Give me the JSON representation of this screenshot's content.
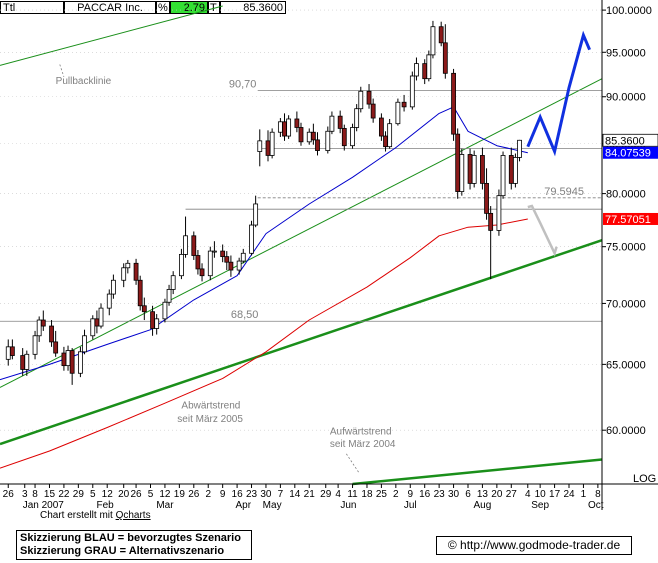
{
  "header": {
    "ttl": "Ttl",
    "name": "PACCAR Inc.",
    "pct_label": "%",
    "pct_value": "2.79",
    "t_label": "T",
    "price": "85.3600"
  },
  "chart_data": {
    "type": "candlestick",
    "y_scale": "log",
    "ylim": [
      56.2,
      100.5
    ],
    "y_ticks": [
      "100.0000",
      "95.0000",
      "90.0000",
      "85.0000",
      "80.0000",
      "75.0000",
      "70.0000",
      "65.0000",
      "60.0000"
    ],
    "y_tick_values": [
      100,
      95,
      90,
      85,
      80,
      75,
      70,
      65,
      60
    ],
    "log_label": "LOG",
    "x_start": "2006-12-22",
    "x_end": "2007-10-10",
    "x_tick_days": [
      "26",
      "3",
      "8",
      "15",
      "22",
      "29",
      "5",
      "12",
      "20",
      "26",
      "5",
      "12",
      "19",
      "26",
      "2",
      "9",
      "16",
      "23",
      "30",
      "7",
      "14",
      "21",
      "29",
      "4",
      "11",
      "18",
      "25",
      "2",
      "9",
      "16",
      "23",
      "30",
      "6",
      "13",
      "20",
      "27",
      "4",
      "10",
      "17",
      "24",
      "1",
      "8"
    ],
    "x_tick_dates": [
      "2006-12-26",
      "2007-01-03",
      "2007-01-08",
      "2007-01-15",
      "2007-01-22",
      "2007-01-29",
      "2007-02-05",
      "2007-02-12",
      "2007-02-20",
      "2007-02-26",
      "2007-03-05",
      "2007-03-12",
      "2007-03-19",
      "2007-03-26",
      "2007-04-02",
      "2007-04-09",
      "2007-04-16",
      "2007-04-23",
      "2007-04-30",
      "2007-05-07",
      "2007-05-14",
      "2007-05-21",
      "2007-05-29",
      "2007-06-04",
      "2007-06-11",
      "2007-06-18",
      "2007-06-25",
      "2007-07-02",
      "2007-07-09",
      "2007-07-16",
      "2007-07-23",
      "2007-07-30",
      "2007-08-06",
      "2007-08-13",
      "2007-08-20",
      "2007-08-27",
      "2007-09-04",
      "2007-09-10",
      "2007-09-17",
      "2007-09-24",
      "2007-10-01",
      "2007-10-08"
    ],
    "months": [
      {
        "label": "Jan 2007",
        "date": "2007-01-12"
      },
      {
        "label": "Feb",
        "date": "2007-02-11"
      },
      {
        "label": "Mar",
        "date": "2007-03-12"
      },
      {
        "label": "Apr",
        "date": "2007-04-19"
      },
      {
        "label": "May",
        "date": "2007-05-03"
      },
      {
        "label": "Jun",
        "date": "2007-06-09"
      },
      {
        "label": "Jul",
        "date": "2007-07-09"
      },
      {
        "label": "Aug",
        "date": "2007-08-13"
      },
      {
        "label": "Sep",
        "date": "2007-09-10"
      },
      {
        "label": "Oct",
        "date": "2007-10-07"
      }
    ],
    "candles": [
      {
        "d": "2006-12-26",
        "o": 65.4,
        "h": 67.0,
        "l": 64.9,
        "c": 66.4
      },
      {
        "d": "2006-12-28",
        "o": 66.4,
        "h": 67.0,
        "l": 65.4,
        "c": 65.7
      },
      {
        "d": "2007-01-02",
        "o": 65.7,
        "h": 66.3,
        "l": 64.1,
        "c": 64.6
      },
      {
        "d": "2007-01-04",
        "o": 64.6,
        "h": 66.1,
        "l": 64.1,
        "c": 65.8
      },
      {
        "d": "2007-01-08",
        "o": 65.8,
        "h": 67.7,
        "l": 65.4,
        "c": 67.3
      },
      {
        "d": "2007-01-10",
        "o": 67.3,
        "h": 68.9,
        "l": 66.8,
        "c": 68.6
      },
      {
        "d": "2007-01-12",
        "o": 68.6,
        "h": 69.4,
        "l": 67.7,
        "c": 68.1
      },
      {
        "d": "2007-01-16",
        "o": 68.1,
        "h": 68.6,
        "l": 66.4,
        "c": 66.8
      },
      {
        "d": "2007-01-18",
        "o": 66.8,
        "h": 67.7,
        "l": 65.6,
        "c": 65.9
      },
      {
        "d": "2007-01-22",
        "o": 65.9,
        "h": 66.4,
        "l": 64.5,
        "c": 64.9
      },
      {
        "d": "2007-01-24",
        "o": 64.9,
        "h": 66.5,
        "l": 64.5,
        "c": 66.1
      },
      {
        "d": "2007-01-26",
        "o": 66.1,
        "h": 66.3,
        "l": 63.4,
        "c": 64.3
      },
      {
        "d": "2007-01-30",
        "o": 64.3,
        "h": 66.4,
        "l": 64.0,
        "c": 66.0
      },
      {
        "d": "2007-02-01",
        "o": 66.0,
        "h": 67.8,
        "l": 65.8,
        "c": 67.3
      },
      {
        "d": "2007-02-05",
        "o": 67.3,
        "h": 69.0,
        "l": 67.0,
        "c": 68.7
      },
      {
        "d": "2007-02-07",
        "o": 68.7,
        "h": 69.4,
        "l": 67.5,
        "c": 68.1
      },
      {
        "d": "2007-02-09",
        "o": 68.1,
        "h": 70.0,
        "l": 67.9,
        "c": 69.6
      },
      {
        "d": "2007-02-13",
        "o": 69.6,
        "h": 71.2,
        "l": 69.0,
        "c": 70.8
      },
      {
        "d": "2007-02-15",
        "o": 70.8,
        "h": 72.5,
        "l": 70.4,
        "c": 72.0
      },
      {
        "d": "2007-02-20",
        "o": 72.0,
        "h": 73.5,
        "l": 71.4,
        "c": 73.1
      },
      {
        "d": "2007-02-22",
        "o": 73.1,
        "h": 73.8,
        "l": 72.6,
        "c": 73.5
      },
      {
        "d": "2007-02-26",
        "o": 73.5,
        "h": 73.9,
        "l": 71.6,
        "c": 72.0
      },
      {
        "d": "2007-02-28",
        "o": 72.0,
        "h": 72.4,
        "l": 69.4,
        "c": 69.8
      },
      {
        "d": "2007-03-02",
        "o": 69.8,
        "h": 70.5,
        "l": 68.6,
        "c": 69.3
      },
      {
        "d": "2007-03-06",
        "o": 69.3,
        "h": 69.8,
        "l": 67.3,
        "c": 67.9
      },
      {
        "d": "2007-03-08",
        "o": 67.9,
        "h": 69.1,
        "l": 67.4,
        "c": 68.7
      },
      {
        "d": "2007-03-12",
        "o": 68.7,
        "h": 70.4,
        "l": 68.4,
        "c": 70.1
      },
      {
        "d": "2007-03-14",
        "o": 70.1,
        "h": 71.6,
        "l": 69.8,
        "c": 71.2
      },
      {
        "d": "2007-03-16",
        "o": 71.2,
        "h": 72.8,
        "l": 70.8,
        "c": 72.4
      },
      {
        "d": "2007-03-20",
        "o": 72.4,
        "h": 74.8,
        "l": 72.1,
        "c": 74.3
      },
      {
        "d": "2007-03-22",
        "o": 74.3,
        "h": 77.8,
        "l": 74.0,
        "c": 76.0
      },
      {
        "d": "2007-03-26",
        "o": 76.0,
        "h": 76.4,
        "l": 73.8,
        "c": 74.2
      },
      {
        "d": "2007-03-28",
        "o": 74.2,
        "h": 74.7,
        "l": 72.5,
        "c": 73.0
      },
      {
        "d": "2007-03-30",
        "o": 73.0,
        "h": 73.5,
        "l": 71.9,
        "c": 72.4
      },
      {
        "d": "2007-04-03",
        "o": 72.4,
        "h": 75.0,
        "l": 72.0,
        "c": 74.6
      },
      {
        "d": "2007-04-05",
        "o": 74.6,
        "h": 75.5,
        "l": 74.0,
        "c": 74.6
      },
      {
        "d": "2007-04-09",
        "o": 74.6,
        "h": 75.2,
        "l": 73.6,
        "c": 74.1
      },
      {
        "d": "2007-04-11",
        "o": 74.1,
        "h": 74.6,
        "l": 72.9,
        "c": 73.6
      },
      {
        "d": "2007-04-13",
        "o": 73.6,
        "h": 74.2,
        "l": 72.3,
        "c": 72.9
      },
      {
        "d": "2007-04-17",
        "o": 72.9,
        "h": 74.0,
        "l": 72.5,
        "c": 73.7
      },
      {
        "d": "2007-04-19",
        "o": 73.7,
        "h": 74.8,
        "l": 73.5,
        "c": 74.4
      },
      {
        "d": "2007-04-23",
        "o": 74.4,
        "h": 77.4,
        "l": 74.2,
        "c": 77.0
      },
      {
        "d": "2007-04-25",
        "o": 77.0,
        "h": 79.8,
        "l": 76.8,
        "c": 79.0
      },
      {
        "d": "2007-04-27",
        "o": 84.2,
        "h": 86.5,
        "l": 82.7,
        "c": 85.3
      },
      {
        "d": "2007-05-01",
        "o": 85.3,
        "h": 86.4,
        "l": 83.2,
        "c": 83.8
      },
      {
        "d": "2007-05-03",
        "o": 83.8,
        "h": 86.6,
        "l": 83.5,
        "c": 86.2
      },
      {
        "d": "2007-05-07",
        "o": 86.2,
        "h": 87.7,
        "l": 85.7,
        "c": 87.3
      },
      {
        "d": "2007-05-09",
        "o": 87.3,
        "h": 88.2,
        "l": 85.3,
        "c": 85.8
      },
      {
        "d": "2007-05-11",
        "o": 85.8,
        "h": 88.0,
        "l": 85.5,
        "c": 87.6
      },
      {
        "d": "2007-05-15",
        "o": 87.6,
        "h": 88.4,
        "l": 86.2,
        "c": 86.7
      },
      {
        "d": "2007-05-17",
        "o": 86.7,
        "h": 87.2,
        "l": 84.8,
        "c": 85.2
      },
      {
        "d": "2007-05-21",
        "o": 85.2,
        "h": 86.6,
        "l": 84.9,
        "c": 86.2
      },
      {
        "d": "2007-05-23",
        "o": 86.2,
        "h": 87.1,
        "l": 84.9,
        "c": 85.4
      },
      {
        "d": "2007-05-25",
        "o": 85.4,
        "h": 86.2,
        "l": 83.8,
        "c": 84.3
      },
      {
        "d": "2007-05-30",
        "o": 84.3,
        "h": 86.8,
        "l": 84.0,
        "c": 86.3
      },
      {
        "d": "2007-06-01",
        "o": 86.3,
        "h": 88.4,
        "l": 86.0,
        "c": 87.9
      },
      {
        "d": "2007-06-05",
        "o": 87.9,
        "h": 88.5,
        "l": 86.1,
        "c": 86.6
      },
      {
        "d": "2007-06-07",
        "o": 86.6,
        "h": 87.0,
        "l": 84.3,
        "c": 84.8
      },
      {
        "d": "2007-06-11",
        "o": 84.8,
        "h": 87.1,
        "l": 84.5,
        "c": 86.7
      },
      {
        "d": "2007-06-13",
        "o": 86.7,
        "h": 89.2,
        "l": 86.3,
        "c": 88.7
      },
      {
        "d": "2007-06-15",
        "o": 88.7,
        "h": 91.1,
        "l": 88.3,
        "c": 90.6
      },
      {
        "d": "2007-06-19",
        "o": 90.6,
        "h": 91.4,
        "l": 88.7,
        "c": 89.2
      },
      {
        "d": "2007-06-21",
        "o": 89.2,
        "h": 89.8,
        "l": 87.2,
        "c": 87.7
      },
      {
        "d": "2007-06-25",
        "o": 87.7,
        "h": 88.2,
        "l": 85.3,
        "c": 85.8
      },
      {
        "d": "2007-06-27",
        "o": 85.8,
        "h": 86.3,
        "l": 84.2,
        "c": 84.7
      },
      {
        "d": "2007-06-29",
        "o": 84.7,
        "h": 87.6,
        "l": 84.5,
        "c": 87.1
      },
      {
        "d": "2007-07-03",
        "o": 87.1,
        "h": 89.8,
        "l": 86.9,
        "c": 89.4
      },
      {
        "d": "2007-07-06",
        "o": 89.4,
        "h": 90.2,
        "l": 88.4,
        "c": 88.9
      },
      {
        "d": "2007-07-10",
        "o": 88.9,
        "h": 92.8,
        "l": 88.6,
        "c": 92.3
      },
      {
        "d": "2007-07-12",
        "o": 92.3,
        "h": 94.4,
        "l": 91.8,
        "c": 93.7
      },
      {
        "d": "2007-07-16",
        "o": 93.7,
        "h": 94.2,
        "l": 91.4,
        "c": 92.0
      },
      {
        "d": "2007-07-18",
        "o": 92.0,
        "h": 95.2,
        "l": 91.7,
        "c": 94.7
      },
      {
        "d": "2007-07-20",
        "o": 94.7,
        "h": 98.7,
        "l": 94.3,
        "c": 98.0
      },
      {
        "d": "2007-07-24",
        "o": 98.0,
        "h": 98.6,
        "l": 95.7,
        "c": 96.1
      },
      {
        "d": "2007-07-26",
        "o": 96.1,
        "h": 98.3,
        "l": 92.0,
        "c": 92.6
      },
      {
        "d": "2007-07-30",
        "o": 92.6,
        "h": 93.1,
        "l": 85.3,
        "c": 86.0
      },
      {
        "d": "2007-08-01",
        "o": 86.0,
        "h": 86.6,
        "l": 79.5,
        "c": 80.2
      },
      {
        "d": "2007-08-03",
        "o": 80.2,
        "h": 84.5,
        "l": 79.8,
        "c": 83.9
      },
      {
        "d": "2007-08-07",
        "o": 83.9,
        "h": 84.5,
        "l": 80.4,
        "c": 81.0
      },
      {
        "d": "2007-08-09",
        "o": 81.0,
        "h": 84.3,
        "l": 80.6,
        "c": 83.8
      },
      {
        "d": "2007-08-13",
        "o": 83.8,
        "h": 84.6,
        "l": 80.4,
        "c": 81.0
      },
      {
        "d": "2007-08-15",
        "o": 81.0,
        "h": 82.5,
        "l": 77.5,
        "c": 78.1
      },
      {
        "d": "2007-08-17",
        "o": 78.1,
        "h": 78.8,
        "l": 72.1,
        "c": 76.5
      },
      {
        "d": "2007-08-21",
        "o": 76.5,
        "h": 80.4,
        "l": 76.0,
        "c": 79.8
      },
      {
        "d": "2007-08-23",
        "o": 79.8,
        "h": 84.2,
        "l": 79.5,
        "c": 83.8
      },
      {
        "d": "2007-08-27",
        "o": 83.8,
        "h": 84.6,
        "l": 80.4,
        "c": 81.0
      },
      {
        "d": "2007-08-29",
        "o": 81.0,
        "h": 84.0,
        "l": 80.6,
        "c": 83.6
      },
      {
        "d": "2007-08-31",
        "o": 83.6,
        "h": 85.4,
        "l": 83.2,
        "c": 85.36
      }
    ],
    "ma_slow": [
      {
        "d": "2006-12-22",
        "v": 57.3
      },
      {
        "d": "2007-01-15",
        "v": 58.5
      },
      {
        "d": "2007-02-12",
        "v": 60.2
      },
      {
        "d": "2007-03-12",
        "v": 62.0
      },
      {
        "d": "2007-04-09",
        "v": 63.9
      },
      {
        "d": "2007-04-30",
        "v": 66.0
      },
      {
        "d": "2007-05-21",
        "v": 68.6
      },
      {
        "d": "2007-06-18",
        "v": 71.4
      },
      {
        "d": "2007-07-09",
        "v": 74.0
      },
      {
        "d": "2007-07-23",
        "v": 76.0
      },
      {
        "d": "2007-08-06",
        "v": 76.8
      },
      {
        "d": "2007-08-20",
        "v": 77.0
      },
      {
        "d": "2007-09-04",
        "v": 77.57
      }
    ],
    "ma_fast": [
      {
        "d": "2006-12-22",
        "v": 63.8
      },
      {
        "d": "2007-01-15",
        "v": 65.0
      },
      {
        "d": "2007-02-12",
        "v": 66.6
      },
      {
        "d": "2007-03-05",
        "v": 67.8
      },
      {
        "d": "2007-03-26",
        "v": 70.3
      },
      {
        "d": "2007-04-16",
        "v": 72.4
      },
      {
        "d": "2007-04-30",
        "v": 76.2
      },
      {
        "d": "2007-05-21",
        "v": 79.0
      },
      {
        "d": "2007-06-11",
        "v": 81.6
      },
      {
        "d": "2007-07-02",
        "v": 84.6
      },
      {
        "d": "2007-07-23",
        "v": 88.2
      },
      {
        "d": "2007-07-30",
        "v": 88.9
      },
      {
        "d": "2007-08-06",
        "v": 86.3
      },
      {
        "d": "2007-08-20",
        "v": 84.8
      },
      {
        "d": "2007-09-04",
        "v": 84.08
      }
    ],
    "lines": [
      {
        "name": "pullbacklinie",
        "color": "#1a8f1a",
        "width": 1,
        "points": [
          {
            "d": "2006-12-22",
            "v": 93.5
          },
          {
            "d": "2007-04-09",
            "v": 100.5
          }
        ]
      },
      {
        "name": "abwaertstrend",
        "color": "#1a8f1a",
        "width": 1,
        "points": [
          {
            "d": "2006-12-22",
            "v": 63.2
          },
          {
            "d": "2007-10-10",
            "v": 92.0
          }
        ]
      },
      {
        "name": "aufwaertstrend-2005",
        "color": "#1a8f1a",
        "width": 2.5,
        "points": [
          {
            "d": "2006-12-22",
            "v": 59.0
          },
          {
            "d": "2007-10-10",
            "v": 75.6
          }
        ]
      },
      {
        "name": "aufwaertstrend-2004",
        "color": "#1a8f1a",
        "width": 2.5,
        "points": [
          {
            "d": "2007-06-11",
            "v": 56.2
          },
          {
            "d": "2007-10-10",
            "v": 57.9
          }
        ]
      }
    ],
    "levels": [
      {
        "label": "90,70",
        "value": 90.7,
        "from": "2007-04-26",
        "label_at": "2007-04-12",
        "dashed": false
      },
      {
        "label": "",
        "value": 84.5,
        "from": "2007-04-26",
        "label_at": "",
        "dashed": false
      },
      {
        "label": "79.5945",
        "value": 79.5945,
        "from": "2007-04-26",
        "label_at": "2007-09-12",
        "dashed": true
      },
      {
        "label": "",
        "value": 78.5,
        "from": "2007-03-22",
        "label_at": "",
        "dashed": false
      },
      {
        "label": "68,50",
        "value": 68.5,
        "from": "2006-12-22",
        "label_at": "2007-04-13",
        "dashed": false
      }
    ],
    "scenario_blue": [
      {
        "d": "2007-09-04",
        "v": 84.7
      },
      {
        "d": "2007-09-10",
        "v": 87.8
      },
      {
        "d": "2007-09-17",
        "v": 84.2
      },
      {
        "d": "2007-09-24",
        "v": 91.0
      },
      {
        "d": "2007-10-01",
        "v": 97.0
      },
      {
        "d": "2007-10-04",
        "v": 95.3
      }
    ],
    "scenario_gray": [
      {
        "d": "2007-09-04",
        "v": 78.7
      },
      {
        "d": "2007-09-06",
        "v": 78.8
      },
      {
        "d": "2007-09-10",
        "v": 77.2
      },
      {
        "d": "2007-09-17",
        "v": 74.4
      },
      {
        "d": "2007-09-18",
        "v": 75.0
      }
    ],
    "annotations": [
      {
        "text": "Pullbacklinie",
        "d": "2007-01-18",
        "v": 91.4
      },
      {
        "text": "Abwärtstrend",
        "d": "2007-03-20",
        "v": 61.6
      },
      {
        "text": "seit März 2005",
        "d": "2007-03-18",
        "v": 60.6
      },
      {
        "text": "Aufwärtstrend",
        "d": "2007-05-31",
        "v": 59.7
      },
      {
        "text": "seit März 2004",
        "d": "2007-05-31",
        "v": 58.8
      }
    ],
    "price_boxes": [
      {
        "label": "85.3600",
        "value": 85.36,
        "bg": "#ffffff",
        "fg": "#000000",
        "border": true
      },
      {
        "label": "84.07539",
        "value": 84.07539,
        "bg": "#0000ff",
        "fg": "#ffffff",
        "border": false
      },
      {
        "label": "77.57051",
        "value": 77.57051,
        "bg": "#ff0000",
        "fg": "#ffffff",
        "border": false
      }
    ],
    "colors": {
      "up": "#ffffff",
      "down": "#8b1a1a",
      "wick": "#000000",
      "ma_fast": "#0000cc",
      "ma_slow": "#dd0000",
      "scenario_blue": "#1030e0",
      "scenario_gray": "#c0c0c0",
      "grid": "#808080"
    }
  },
  "footer": {
    "credit_prefix": "Chart erstellt mit ",
    "credit_tool": "Qcharts",
    "legend_blue": "Skizzierung BLAU = bevorzugtes Szenario",
    "legend_gray": "Skizzierung GRAU = Alternativszenario",
    "copyright": "© http://www.godmode-trader.de"
  }
}
